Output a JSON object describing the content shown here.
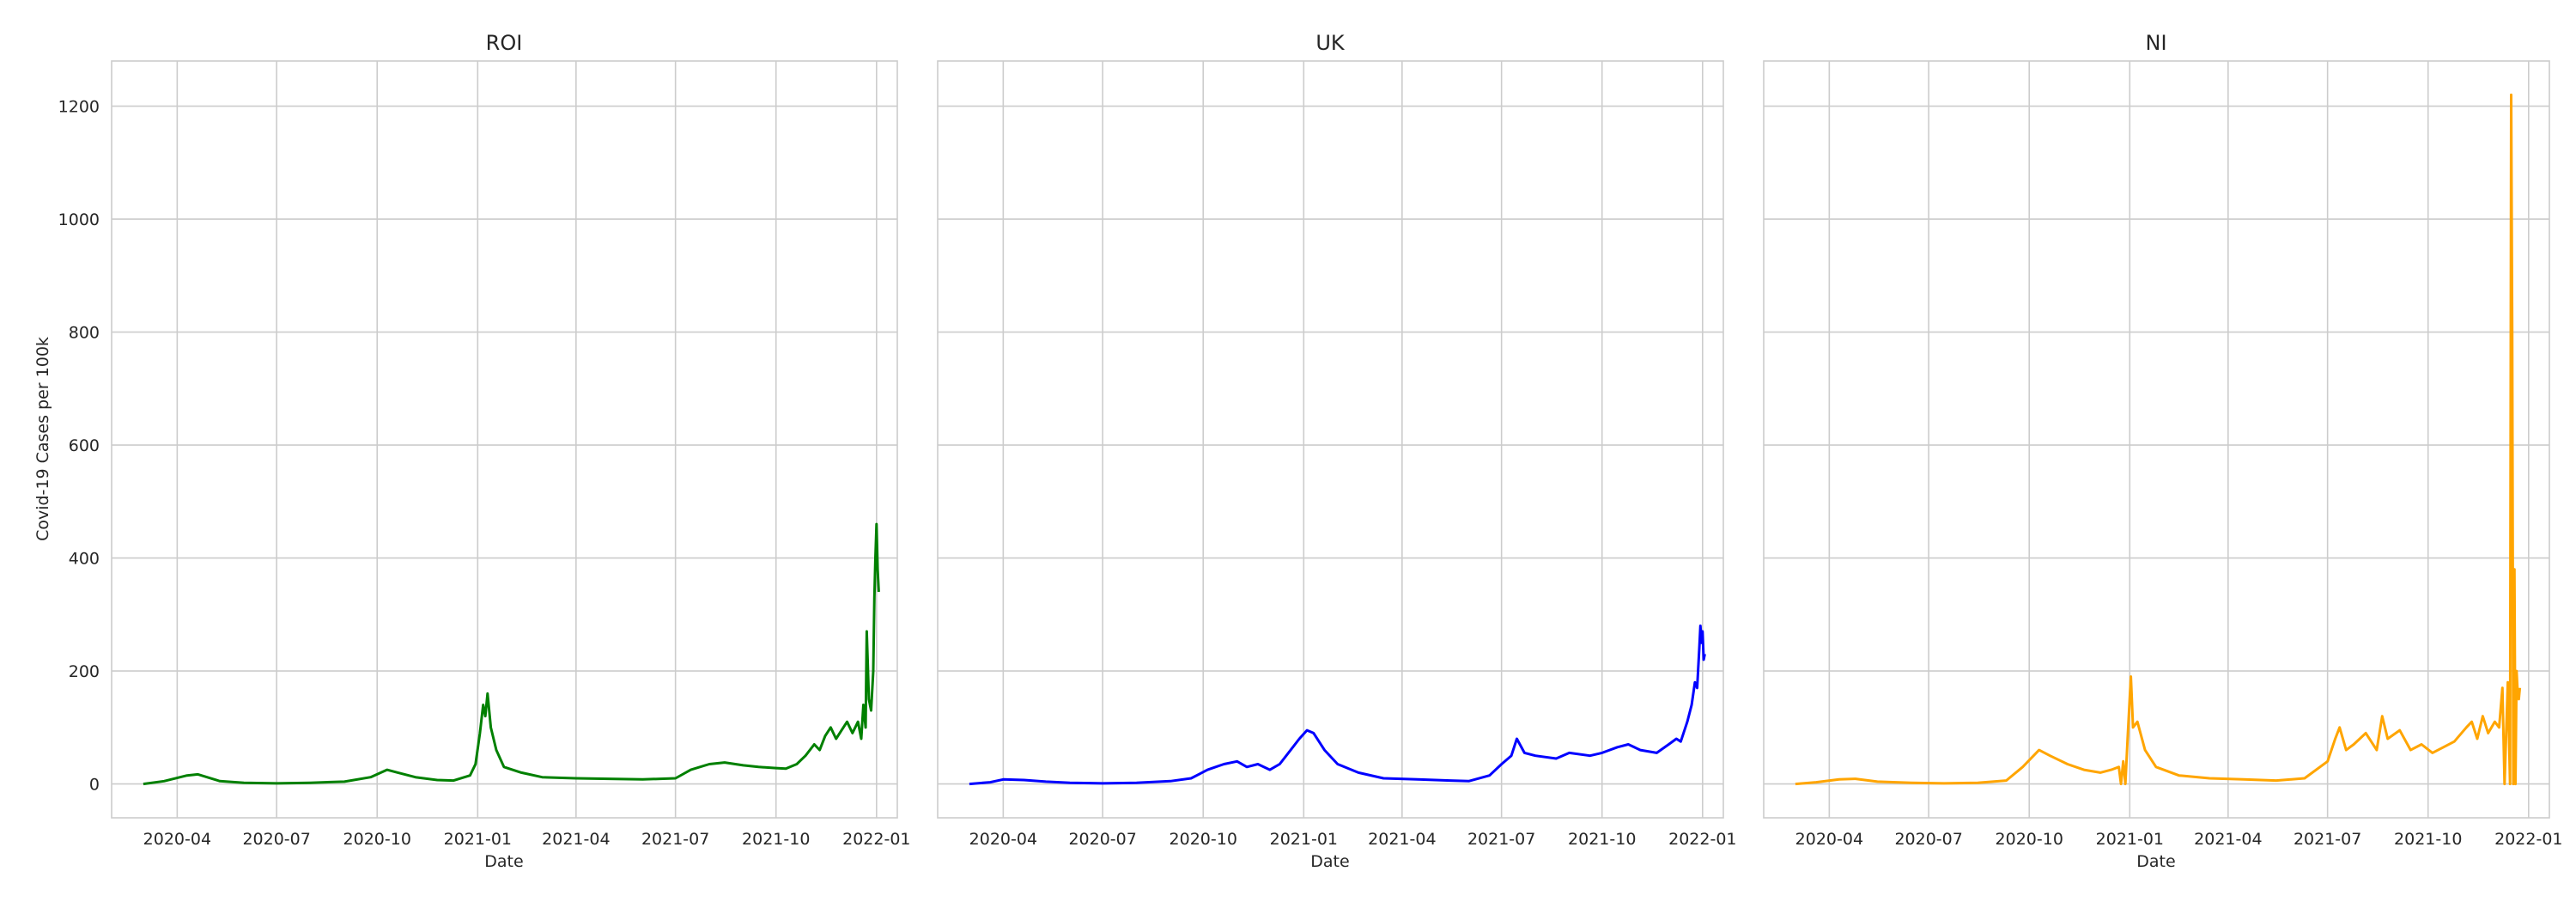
{
  "chart_data": [
    {
      "type": "line",
      "title": "ROI",
      "xlabel": "Date",
      "ylabel": "Covid-19 Cases per 100k",
      "color": "#008000",
      "grid": true,
      "xlim": [
        "2020-02-01",
        "2022-01-20"
      ],
      "ylim": [
        -60,
        1280
      ],
      "xticks": [
        "2020-04",
        "2020-07",
        "2020-10",
        "2021-01",
        "2021-04",
        "2021-07",
        "2021-10",
        "2022-01"
      ],
      "yticks": [
        0,
        200,
        400,
        600,
        800,
        1000,
        1200
      ],
      "x": [
        "2020-03-01",
        "2020-03-20",
        "2020-04-10",
        "2020-04-20",
        "2020-05-10",
        "2020-06-01",
        "2020-07-01",
        "2020-08-01",
        "2020-09-01",
        "2020-09-25",
        "2020-10-10",
        "2020-10-20",
        "2020-11-05",
        "2020-11-25",
        "2020-12-10",
        "2020-12-25",
        "2020-12-30",
        "2021-01-03",
        "2021-01-06",
        "2021-01-08",
        "2021-01-10",
        "2021-01-13",
        "2021-01-18",
        "2021-01-25",
        "2021-02-10",
        "2021-03-01",
        "2021-04-01",
        "2021-05-01",
        "2021-06-01",
        "2021-07-01",
        "2021-07-15",
        "2021-08-01",
        "2021-08-15",
        "2021-09-01",
        "2021-09-15",
        "2021-10-01",
        "2021-10-10",
        "2021-10-20",
        "2021-10-28",
        "2021-11-05",
        "2021-11-10",
        "2021-11-15",
        "2021-11-20",
        "2021-11-25",
        "2021-11-30",
        "2021-12-05",
        "2021-12-10",
        "2021-12-15",
        "2021-12-18",
        "2021-12-20",
        "2021-12-22",
        "2021-12-23",
        "2021-12-25",
        "2021-12-27",
        "2021-12-29",
        "2021-12-30",
        "2021-12-31",
        "2022-01-01",
        "2022-01-02",
        "2022-01-03"
      ],
      "values": [
        0,
        5,
        15,
        17,
        5,
        2,
        1,
        2,
        4,
        12,
        25,
        20,
        12,
        7,
        6,
        15,
        35,
        90,
        140,
        120,
        160,
        100,
        60,
        30,
        20,
        12,
        10,
        9,
        8,
        10,
        25,
        35,
        38,
        33,
        30,
        28,
        27,
        35,
        50,
        70,
        60,
        85,
        100,
        80,
        95,
        110,
        90,
        110,
        80,
        140,
        100,
        270,
        150,
        130,
        200,
        330,
        400,
        460,
        380,
        340
      ]
    },
    {
      "type": "line",
      "title": "UK",
      "xlabel": "Date",
      "ylabel": "",
      "color": "#0000ff",
      "grid": true,
      "xlim": [
        "2020-02-01",
        "2022-01-20"
      ],
      "ylim": [
        -60,
        1280
      ],
      "xticks": [
        "2020-04",
        "2020-07",
        "2020-10",
        "2021-01",
        "2021-04",
        "2021-07",
        "2021-10",
        "2022-01"
      ],
      "yticks": [
        0,
        200,
        400,
        600,
        800,
        1000,
        1200
      ],
      "x": [
        "2020-03-01",
        "2020-03-20",
        "2020-04-01",
        "2020-04-20",
        "2020-05-10",
        "2020-06-01",
        "2020-07-01",
        "2020-08-01",
        "2020-09-01",
        "2020-09-20",
        "2020-10-05",
        "2020-10-20",
        "2020-11-01",
        "2020-11-10",
        "2020-11-20",
        "2020-12-01",
        "2020-12-10",
        "2020-12-20",
        "2020-12-28",
        "2021-01-04",
        "2021-01-10",
        "2021-01-20",
        "2021-02-01",
        "2021-02-20",
        "2021-03-15",
        "2021-04-15",
        "2021-05-15",
        "2021-06-01",
        "2021-06-20",
        "2021-07-01",
        "2021-07-10",
        "2021-07-15",
        "2021-07-22",
        "2021-08-01",
        "2021-08-20",
        "2021-09-01",
        "2021-09-20",
        "2021-10-01",
        "2021-10-15",
        "2021-10-25",
        "2021-11-05",
        "2021-11-20",
        "2021-12-01",
        "2021-12-08",
        "2021-12-12",
        "2021-12-18",
        "2021-12-22",
        "2021-12-25",
        "2021-12-27",
        "2021-12-29",
        "2021-12-30",
        "2021-12-31",
        "2022-01-01",
        "2022-01-02",
        "2022-01-03"
      ],
      "values": [
        0,
        3,
        8,
        7,
        4,
        2,
        1,
        2,
        5,
        10,
        25,
        35,
        40,
        30,
        35,
        25,
        35,
        60,
        80,
        95,
        90,
        60,
        35,
        20,
        10,
        8,
        6,
        5,
        15,
        35,
        50,
        80,
        55,
        50,
        45,
        55,
        50,
        55,
        65,
        70,
        60,
        55,
        70,
        80,
        75,
        110,
        140,
        180,
        170,
        240,
        280,
        250,
        270,
        220,
        230
      ]
    },
    {
      "type": "line",
      "title": "NI",
      "xlabel": "Date",
      "ylabel": "",
      "color": "#ffa500",
      "grid": true,
      "xlim": [
        "2020-02-01",
        "2022-01-20"
      ],
      "ylim": [
        -60,
        1280
      ],
      "xticks": [
        "2020-04",
        "2020-07",
        "2020-10",
        "2021-01",
        "2021-04",
        "2021-07",
        "2021-10",
        "2022-01"
      ],
      "yticks": [
        0,
        200,
        400,
        600,
        800,
        1000,
        1200
      ],
      "x": [
        "2020-03-01",
        "2020-03-20",
        "2020-04-10",
        "2020-04-25",
        "2020-05-15",
        "2020-06-15",
        "2020-07-15",
        "2020-08-15",
        "2020-09-10",
        "2020-09-25",
        "2020-10-10",
        "2020-10-20",
        "2020-11-05",
        "2020-11-20",
        "2020-12-05",
        "2020-12-15",
        "2020-12-22",
        "2020-12-24",
        "2020-12-26",
        "2020-12-28",
        "2020-12-30",
        "2021-01-02",
        "2021-01-04",
        "2021-01-08",
        "2021-01-15",
        "2021-01-25",
        "2021-02-15",
        "2021-03-15",
        "2021-04-15",
        "2021-05-15",
        "2021-06-10",
        "2021-07-01",
        "2021-07-08",
        "2021-07-12",
        "2021-07-18",
        "2021-07-25",
        "2021-08-05",
        "2021-08-15",
        "2021-08-20",
        "2021-08-25",
        "2021-09-05",
        "2021-09-15",
        "2021-09-25",
        "2021-10-05",
        "2021-10-15",
        "2021-10-25",
        "2021-11-05",
        "2021-11-10",
        "2021-11-15",
        "2021-11-20",
        "2021-11-25",
        "2021-12-01",
        "2021-12-05",
        "2021-12-08",
        "2021-12-10",
        "2021-12-13",
        "2021-12-15",
        "2021-12-16",
        "2021-12-17",
        "2021-12-18",
        "2021-12-19",
        "2021-12-20",
        "2021-12-21",
        "2021-12-22",
        "2021-12-23",
        "2021-12-24"
      ],
      "values": [
        0,
        3,
        8,
        9,
        4,
        2,
        1,
        2,
        6,
        30,
        60,
        50,
        35,
        25,
        20,
        25,
        30,
        0,
        40,
        0,
        80,
        190,
        100,
        110,
        60,
        30,
        15,
        10,
        8,
        6,
        10,
        40,
        80,
        100,
        60,
        70,
        90,
        60,
        120,
        80,
        95,
        60,
        70,
        55,
        65,
        75,
        100,
        110,
        80,
        120,
        90,
        110,
        100,
        170,
        0,
        180,
        0,
        1220,
        800,
        0,
        380,
        0,
        200,
        160,
        150,
        170
      ]
    }
  ]
}
